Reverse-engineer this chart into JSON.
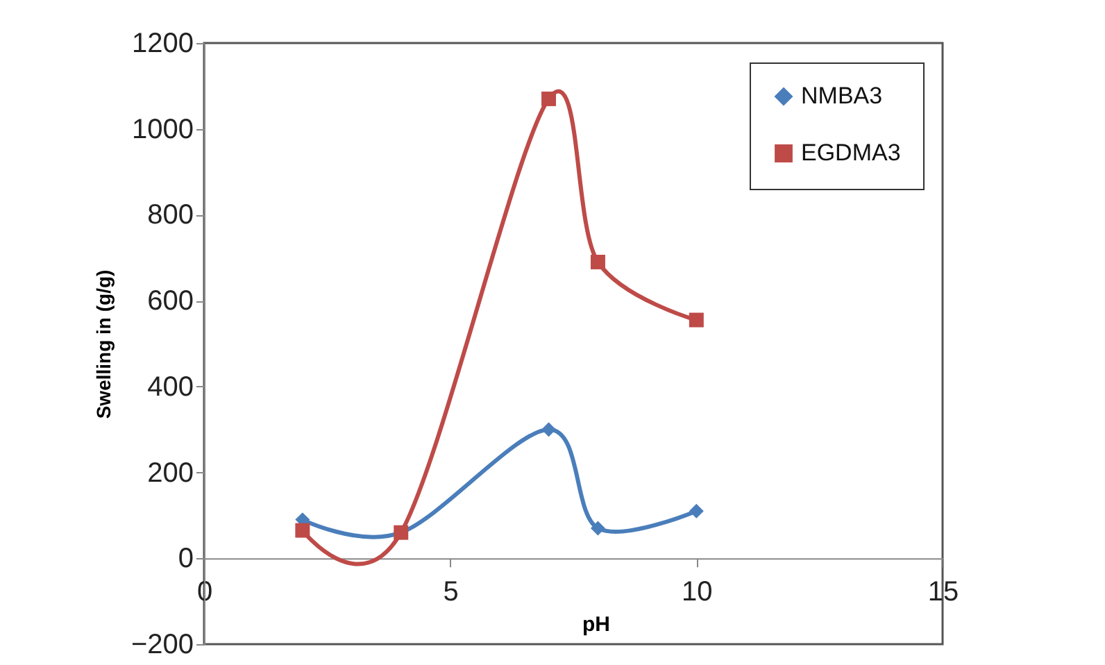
{
  "chart_data": {
    "type": "line",
    "xlabel": "pH",
    "ylabel": "Swelling in (g/g)",
    "xlim": [
      0,
      15
    ],
    "xticks": [
      0,
      5,
      10,
      15
    ],
    "ylim": [
      -200,
      1200
    ],
    "yticks": [
      -200,
      0,
      200,
      400,
      600,
      800,
      1000,
      1200
    ],
    "grid": false,
    "legend": "top right",
    "line_style": "solid",
    "x": [
      2,
      4,
      7,
      8,
      10
    ],
    "series": [
      {
        "name": "NMBA3",
        "color": "#4a7ebb",
        "marker": "diamond",
        "values": [
          90,
          60,
          300,
          70,
          110
        ]
      },
      {
        "name": "EGDMA3",
        "color": "#be4b48",
        "marker": "square",
        "values": [
          65,
          60,
          1070,
          690,
          555
        ]
      }
    ]
  }
}
